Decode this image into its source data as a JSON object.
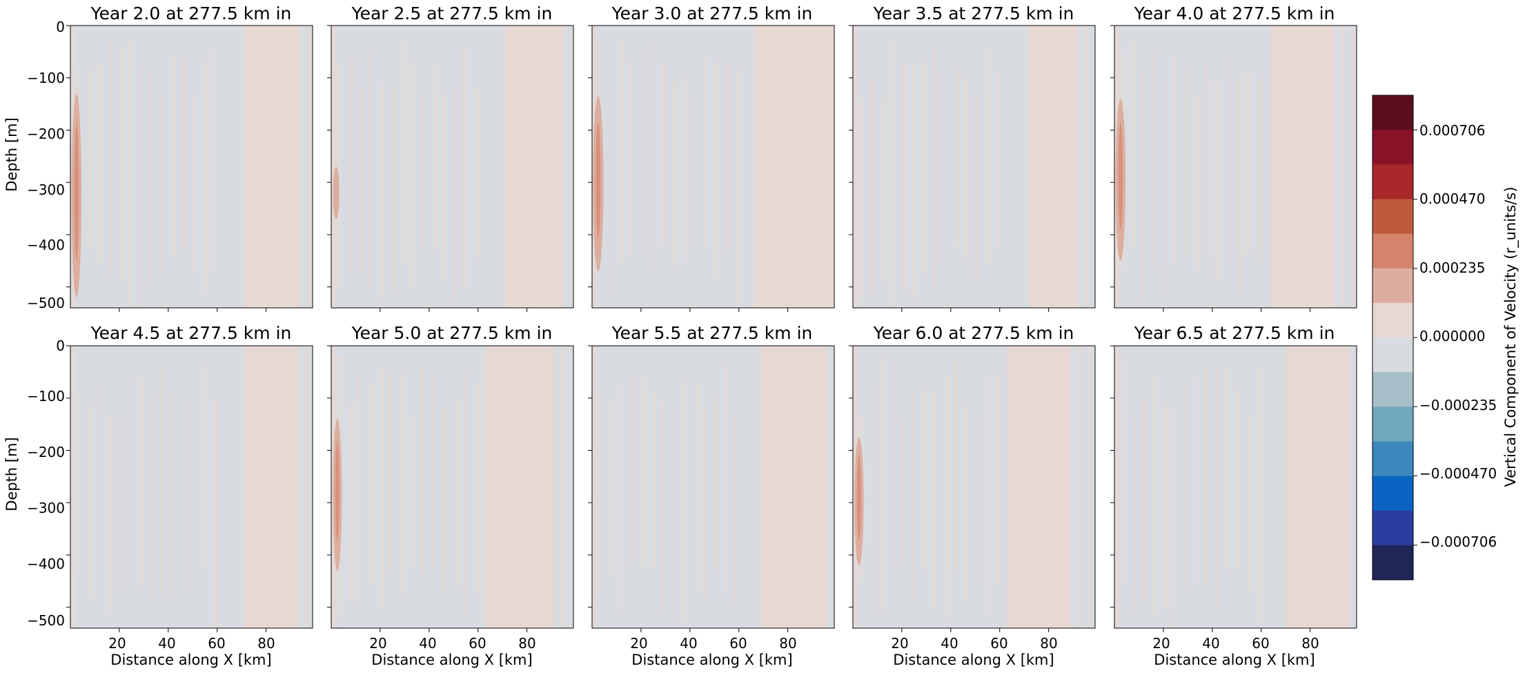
{
  "figure": {
    "panels": [
      {
        "title": "Year 2.0 at 277.5 km in"
      },
      {
        "title": "Year 2.5 at 277.5 km in"
      },
      {
        "title": "Year 3.0 at 277.5 km in"
      },
      {
        "title": "Year 3.5 at 277.5 km in"
      },
      {
        "title": "Year 4.0 at 277.5 km in"
      },
      {
        "title": "Year 4.5 at 277.5 km in"
      },
      {
        "title": "Year 5.0 at 277.5 km in"
      },
      {
        "title": "Year 5.5 at 277.5 km in"
      },
      {
        "title": "Year 6.0 at 277.5 km in"
      },
      {
        "title": "Year 6.5 at 277.5 km in"
      }
    ],
    "xlabel": "Distance along X [km]",
    "ylabel": "Depth [m]",
    "xticks": [
      "20",
      "40",
      "60",
      "80"
    ],
    "yticks": [
      "0",
      "−100",
      "−200",
      "−300",
      "−400",
      "−500"
    ],
    "colorbar": {
      "label": "Vertical Component of Velocity (r_units/s)",
      "ticks": [
        "0.000706",
        "0.000470",
        "0.000235",
        "0.000000",
        "−0.000235",
        "−0.000470",
        "−0.000706"
      ]
    }
  },
  "chart_data": {
    "type": "heatmap",
    "layout": "2 rows x 5 columns of contour panels, shared colorbar on the right",
    "x_range_km": [
      0,
      99
    ],
    "y_range_m": [
      -540,
      0
    ],
    "xticks": [
      20,
      40,
      60,
      80
    ],
    "yticks": [
      0,
      -100,
      -200,
      -300,
      -400,
      -500
    ],
    "colorbar": {
      "tick_values": [
        0.000706,
        0.00047,
        0.000235,
        0.0,
        -0.000235,
        -0.00047,
        -0.000706
      ],
      "level_colors_top_to_bottom": [
        "#5a0e1f",
        "#8a1228",
        "#a8272a",
        "#c05a3d",
        "#d4846a",
        "#ddaea0",
        "#e8d8d4",
        "#d8dce0",
        "#a8bec9",
        "#71a7bf",
        "#3b88bd",
        "#0b64c2",
        "#2b3d9e",
        "#212659"
      ]
    },
    "panels": [
      {
        "year": 2.0,
        "pink_band_start_km": 71,
        "pink_band_end_km": 94,
        "anomaly": {
          "x_km": 2.5,
          "depth_top_m": -130,
          "depth_bottom_m": -520,
          "strength": 0.85
        }
      },
      {
        "year": 2.5,
        "pink_band_start_km": 71,
        "pink_band_end_km": 95,
        "anomaly": {
          "x_km": 2.0,
          "depth_top_m": -270,
          "depth_bottom_m": -370,
          "strength": 0.35
        }
      },
      {
        "year": 3.0,
        "pink_band_start_km": 66,
        "pink_band_end_km": 99,
        "anomaly": {
          "x_km": 2.5,
          "depth_top_m": -135,
          "depth_bottom_m": -470,
          "strength": 0.95
        }
      },
      {
        "year": 3.5,
        "pink_band_start_km": 72,
        "pink_band_end_km": 92,
        "anomaly": null
      },
      {
        "year": 4.0,
        "pink_band_start_km": 64,
        "pink_band_end_km": 90,
        "anomaly": {
          "x_km": 2.5,
          "depth_top_m": -140,
          "depth_bottom_m": -450,
          "strength": 0.85
        }
      },
      {
        "year": 4.5,
        "pink_band_start_km": 71,
        "pink_band_end_km": 93,
        "anomaly": null
      },
      {
        "year": 5.0,
        "pink_band_start_km": 63,
        "pink_band_end_km": 91,
        "anomaly": {
          "x_km": 2.5,
          "depth_top_m": -140,
          "depth_bottom_m": -430,
          "strength": 0.7
        }
      },
      {
        "year": 5.5,
        "pink_band_start_km": 69,
        "pink_band_end_km": 96,
        "anomaly": null
      },
      {
        "year": 6.0,
        "pink_band_start_km": 63,
        "pink_band_end_km": 89,
        "anomaly": {
          "x_km": 2.5,
          "depth_top_m": -175,
          "depth_bottom_m": -420,
          "strength": 0.75
        }
      },
      {
        "year": 6.5,
        "pink_band_start_km": 70,
        "pink_band_end_km": 96,
        "anomaly": null
      }
    ]
  }
}
